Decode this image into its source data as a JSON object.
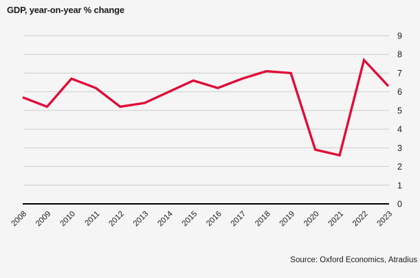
{
  "title": "GDP, year-on-year % change",
  "source": "Source: Oxford Economics, Atradius",
  "colors": {
    "background": "#f5f5f5",
    "line": "#e00b37",
    "gridline": "#cccccc",
    "axis": "#000000",
    "text": "#1a1a1a"
  },
  "chart_data": {
    "type": "line",
    "title": "GDP, year-on-year % change",
    "categories": [
      "2008",
      "2009",
      "2010",
      "2011",
      "2012",
      "2013",
      "2014",
      "2015",
      "2016",
      "2017",
      "2018",
      "2019",
      "2020",
      "2021",
      "2022",
      "2023"
    ],
    "series": [
      {
        "name": "GDP year-on-year % change",
        "values": [
          5.7,
          5.2,
          6.7,
          6.2,
          5.2,
          5.4,
          6.0,
          6.6,
          6.2,
          6.7,
          7.1,
          7.0,
          2.9,
          2.6,
          7.7,
          6.3
        ]
      }
    ],
    "xlabel": "",
    "ylabel": "",
    "ylim": [
      0,
      9
    ],
    "yticks": [
      0,
      1,
      2,
      3,
      4,
      5,
      6,
      7,
      8,
      9
    ],
    "grid": true,
    "legend": false,
    "y_axis_side": "right",
    "x_tick_rotation": -45,
    "source": "Source: Oxford Economics, Atradius"
  }
}
